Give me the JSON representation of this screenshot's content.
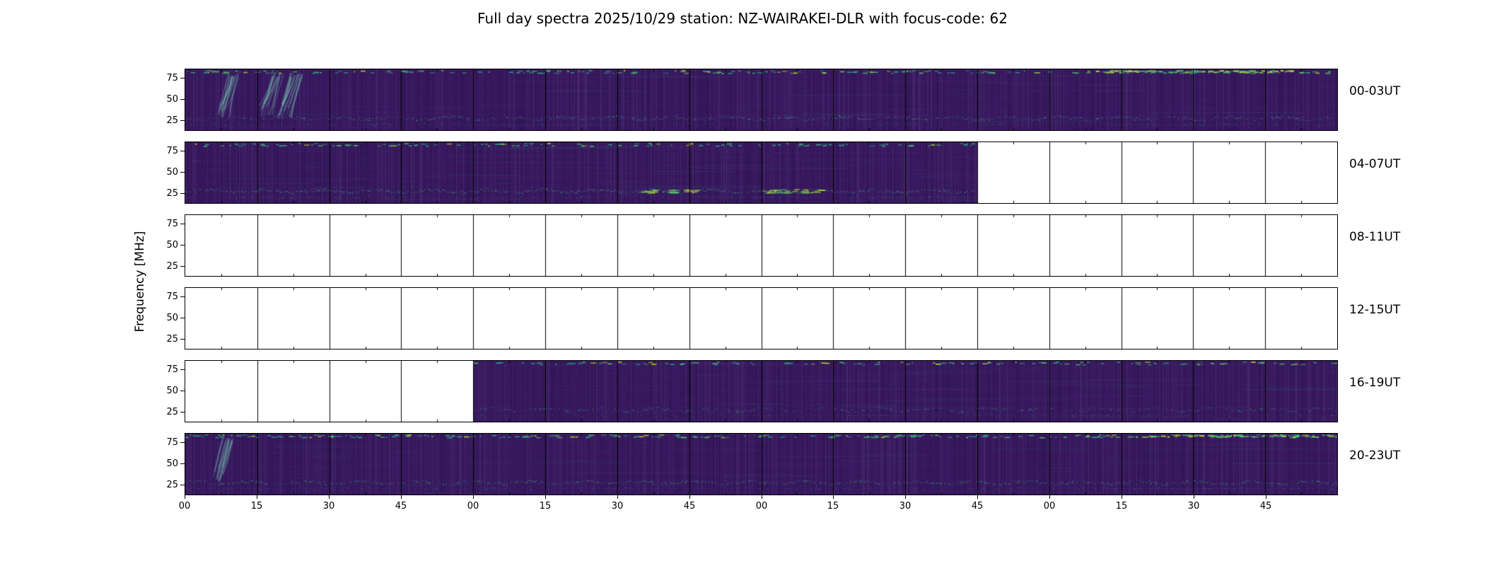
{
  "title": "Full day spectra 2025/10/29 station: NZ-WAIRAKEI-DLR with focus-code: 62",
  "ylabel": "Frequency [MHz]",
  "chart_data": {
    "type": "heatmap",
    "title": "Full day spectra 2025/10/29 station: NZ-WAIRAKEI-DLR with focus-code: 62",
    "date": "2025/10/29",
    "station": "NZ-WAIRAKEI-DLR",
    "focus_code": "62",
    "ylabel": "Frequency [MHz]",
    "colormap": "viridis",
    "y_ticks": [
      "75",
      "50",
      "25"
    ],
    "y_tick_units": "MHz",
    "segments_per_row": 16,
    "segment_minutes": 15,
    "x_tick_labels": [
      "00",
      "15",
      "30",
      "45",
      "00",
      "15",
      "30",
      "45",
      "00",
      "15",
      "30",
      "45",
      "00",
      "15",
      "30",
      "45"
    ],
    "rows": [
      {
        "label": "00-03UT",
        "filled_from": 0,
        "filled_to": 16,
        "top_intensity": 0.9,
        "bottom_intensity": 0.8
      },
      {
        "label": "04-07UT",
        "filled_from": 0,
        "filled_to": 11,
        "top_intensity": 0.8,
        "bottom_intensity": 1.1
      },
      {
        "label": "08-11UT",
        "filled_from": 0,
        "filled_to": 0,
        "top_intensity": 0,
        "bottom_intensity": 0
      },
      {
        "label": "12-15UT",
        "filled_from": 0,
        "filled_to": 0,
        "top_intensity": 0,
        "bottom_intensity": 0
      },
      {
        "label": "16-19UT",
        "filled_from": 4,
        "filled_to": 16,
        "top_intensity": 0.7,
        "bottom_intensity": 0.6
      },
      {
        "label": "20-23UT",
        "filled_from": 0,
        "filled_to": 16,
        "top_intensity": 1.0,
        "bottom_intensity": 0.9
      }
    ],
    "features": [
      {
        "row": 0,
        "segment": 0.6,
        "type": "drift-burst"
      },
      {
        "row": 0,
        "segment": 1.2,
        "type": "drift-burst"
      },
      {
        "row": 0,
        "segment": 1.45,
        "type": "drift-burst"
      },
      {
        "row": 0,
        "segment": 12.5,
        "type": "bright-top",
        "span": 3
      },
      {
        "row": 1,
        "segment": 6.3,
        "type": "bright-band"
      },
      {
        "row": 1,
        "segment": 8.0,
        "type": "bright-band"
      },
      {
        "row": 5,
        "segment": 0.5,
        "type": "drift-burst"
      },
      {
        "row": 5,
        "segment": 13.2,
        "type": "bright-top",
        "span": 2.8
      }
    ],
    "colors": {
      "base": "#38185f",
      "base_dark": "#2a1048",
      "base_light": "#46246e",
      "streak_teal": "#2ba08c",
      "streak_green": "#4ec36d",
      "streak_bright": "#b5dd2b",
      "empty": "#ffffff",
      "frame": "#000000"
    }
  }
}
